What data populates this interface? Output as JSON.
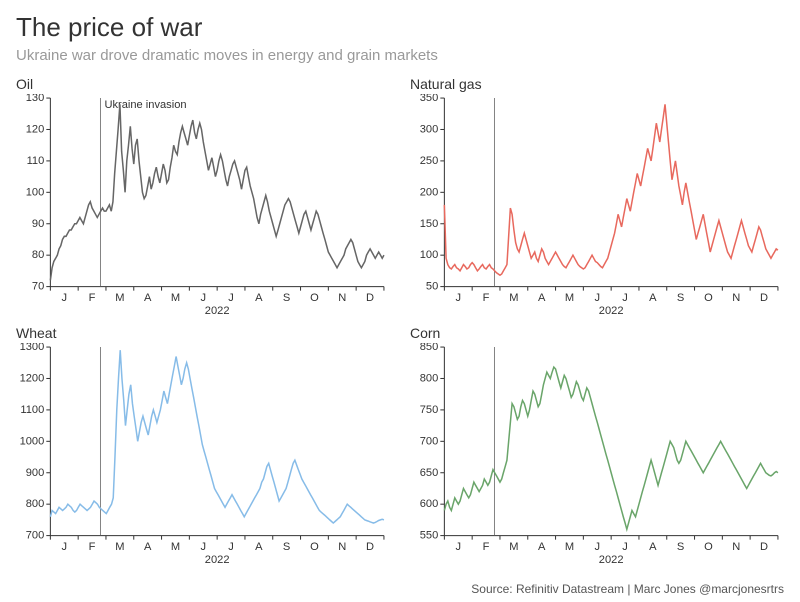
{
  "title": "The price of war",
  "subtitle": "Ukraine war drove dramatic moves in energy and grain markets",
  "source": "Source: Refinitiv Datastream | Marc Jones @marcjonesrtrs",
  "x_axis": {
    "ticks": [
      "J",
      "F",
      "M",
      "A",
      "M",
      "J",
      "J",
      "A",
      "S",
      "O",
      "N",
      "D"
    ],
    "label": "2022",
    "label_fontsize": 11,
    "tick_fontsize": 11
  },
  "invasion_marker": {
    "month_index": 1.8,
    "annotation": "Ukraine invasion",
    "show_annotation_on_panel": 0
  },
  "panels": [
    {
      "title": "Oil",
      "type": "line",
      "line_color": "#666666",
      "line_width": 1.5,
      "ylim": [
        70,
        130
      ],
      "ytick_step": 10,
      "tick_fontsize": 11,
      "background_color": "#ffffff",
      "values": [
        72,
        76,
        78,
        79,
        80,
        82,
        83,
        85,
        86,
        86,
        87,
        88,
        88,
        89,
        90,
        90,
        91,
        92,
        91,
        90,
        92,
        94,
        96,
        97,
        95,
        94,
        93,
        92,
        93,
        94,
        95,
        94,
        94,
        95,
        96,
        94,
        97,
        106,
        113,
        120,
        128,
        113,
        107,
        100,
        110,
        115,
        121,
        114,
        109,
        115,
        117,
        110,
        105,
        100,
        98,
        99,
        102,
        105,
        101,
        103,
        106,
        108,
        105,
        103,
        106,
        109,
        107,
        103,
        104,
        108,
        111,
        115,
        113,
        112,
        116,
        119,
        121,
        119,
        117,
        115,
        118,
        121,
        123,
        119,
        117,
        120,
        122,
        120,
        116,
        113,
        110,
        107,
        109,
        111,
        108,
        105,
        107,
        110,
        112,
        110,
        107,
        104,
        102,
        105,
        107,
        109,
        110,
        108,
        106,
        104,
        101,
        104,
        107,
        108,
        105,
        102,
        100,
        98,
        95,
        92,
        90,
        93,
        95,
        97,
        99,
        97,
        94,
        92,
        90,
        88,
        86,
        88,
        90,
        92,
        94,
        96,
        97,
        98,
        97,
        95,
        93,
        91,
        89,
        87,
        89,
        91,
        93,
        94,
        92,
        90,
        88,
        90,
        92,
        94,
        93,
        91,
        89,
        87,
        85,
        83,
        81,
        80,
        79,
        78,
        77,
        76,
        77,
        78,
        79,
        80,
        82,
        83,
        84,
        85,
        84,
        82,
        80,
        78,
        77,
        76,
        77,
        78,
        80,
        81,
        82,
        81,
        80,
        79,
        80,
        81,
        80,
        79,
        80
      ]
    },
    {
      "title": "Natural gas",
      "type": "line",
      "line_color": "#e8695e",
      "line_width": 1.5,
      "ylim": [
        50,
        350
      ],
      "ytick_step": 50,
      "tick_fontsize": 11,
      "background_color": "#ffffff",
      "values": [
        180,
        95,
        85,
        80,
        78,
        82,
        85,
        80,
        78,
        75,
        80,
        85,
        82,
        78,
        80,
        85,
        88,
        85,
        80,
        75,
        78,
        82,
        85,
        80,
        78,
        82,
        85,
        80,
        78,
        75,
        72,
        70,
        68,
        70,
        75,
        80,
        85,
        130,
        175,
        165,
        140,
        120,
        110,
        105,
        115,
        125,
        135,
        125,
        115,
        105,
        95,
        100,
        105,
        95,
        90,
        100,
        110,
        105,
        95,
        90,
        85,
        90,
        95,
        100,
        105,
        100,
        95,
        90,
        85,
        82,
        80,
        85,
        90,
        95,
        100,
        95,
        90,
        85,
        82,
        80,
        78,
        80,
        85,
        90,
        95,
        100,
        95,
        90,
        88,
        85,
        82,
        80,
        85,
        90,
        95,
        105,
        115,
        125,
        135,
        150,
        165,
        155,
        145,
        160,
        175,
        190,
        180,
        170,
        185,
        200,
        215,
        230,
        220,
        210,
        225,
        240,
        255,
        270,
        260,
        250,
        270,
        290,
        310,
        295,
        280,
        300,
        320,
        340,
        310,
        280,
        250,
        220,
        235,
        250,
        230,
        210,
        195,
        180,
        200,
        215,
        200,
        185,
        170,
        155,
        140,
        125,
        135,
        145,
        155,
        165,
        150,
        135,
        120,
        105,
        115,
        125,
        135,
        145,
        155,
        145,
        135,
        125,
        115,
        105,
        100,
        95,
        105,
        115,
        125,
        135,
        145,
        155,
        145,
        135,
        125,
        115,
        110,
        105,
        115,
        125,
        135,
        145,
        140,
        130,
        120,
        110,
        105,
        100,
        95,
        100,
        105,
        110,
        108
      ]
    },
    {
      "title": "Wheat",
      "type": "line",
      "line_color": "#87bce8",
      "line_width": 1.5,
      "ylim": [
        700,
        1300
      ],
      "ytick_step": 100,
      "tick_fontsize": 11,
      "background_color": "#ffffff",
      "values": [
        760,
        780,
        775,
        770,
        780,
        790,
        785,
        780,
        785,
        790,
        800,
        795,
        790,
        780,
        775,
        780,
        790,
        800,
        795,
        790,
        785,
        780,
        785,
        790,
        800,
        810,
        805,
        800,
        790,
        785,
        780,
        775,
        770,
        780,
        790,
        800,
        820,
        950,
        1100,
        1200,
        1290,
        1200,
        1130,
        1050,
        1100,
        1150,
        1180,
        1120,
        1080,
        1040,
        1000,
        1030,
        1060,
        1080,
        1060,
        1040,
        1020,
        1050,
        1080,
        1100,
        1080,
        1060,
        1080,
        1100,
        1130,
        1160,
        1140,
        1120,
        1150,
        1180,
        1210,
        1240,
        1270,
        1240,
        1210,
        1180,
        1200,
        1230,
        1250,
        1230,
        1200,
        1170,
        1140,
        1110,
        1080,
        1050,
        1020,
        990,
        970,
        950,
        930,
        910,
        890,
        870,
        850,
        840,
        830,
        820,
        810,
        800,
        790,
        800,
        810,
        820,
        830,
        820,
        810,
        800,
        790,
        780,
        770,
        760,
        770,
        780,
        790,
        800,
        810,
        820,
        830,
        840,
        850,
        870,
        880,
        900,
        920,
        930,
        910,
        890,
        870,
        850,
        830,
        810,
        820,
        830,
        840,
        850,
        870,
        890,
        910,
        930,
        940,
        925,
        910,
        895,
        880,
        870,
        860,
        850,
        840,
        830,
        820,
        810,
        800,
        790,
        780,
        775,
        770,
        765,
        760,
        755,
        750,
        745,
        740,
        745,
        750,
        755,
        760,
        770,
        780,
        790,
        800,
        795,
        790,
        785,
        780,
        775,
        770,
        765,
        760,
        755,
        750,
        748,
        746,
        744,
        742,
        740,
        742,
        745,
        748,
        750,
        752,
        750
      ]
    },
    {
      "title": "Corn",
      "type": "line",
      "line_color": "#6aa56a",
      "line_width": 1.5,
      "ylim": [
        550,
        850
      ],
      "ytick_step": 50,
      "tick_fontsize": 11,
      "background_color": "#ffffff",
      "values": [
        590,
        600,
        605,
        595,
        590,
        600,
        610,
        605,
        600,
        605,
        615,
        625,
        620,
        615,
        610,
        615,
        625,
        635,
        630,
        625,
        620,
        625,
        630,
        640,
        635,
        630,
        635,
        645,
        655,
        650,
        645,
        640,
        635,
        640,
        650,
        660,
        670,
        700,
        730,
        760,
        755,
        745,
        735,
        740,
        755,
        765,
        760,
        750,
        740,
        750,
        765,
        780,
        775,
        765,
        755,
        760,
        775,
        790,
        800,
        810,
        805,
        800,
        810,
        818,
        815,
        805,
        795,
        785,
        795,
        805,
        800,
        790,
        780,
        770,
        775,
        785,
        795,
        790,
        780,
        770,
        765,
        775,
        785,
        780,
        770,
        760,
        750,
        740,
        730,
        720,
        710,
        700,
        690,
        680,
        670,
        660,
        650,
        640,
        630,
        620,
        610,
        600,
        590,
        580,
        570,
        560,
        570,
        580,
        590,
        585,
        580,
        590,
        600,
        610,
        620,
        630,
        640,
        650,
        660,
        670,
        660,
        650,
        640,
        630,
        640,
        650,
        660,
        670,
        680,
        690,
        700,
        695,
        690,
        680,
        670,
        665,
        670,
        680,
        690,
        700,
        695,
        690,
        685,
        680,
        675,
        670,
        665,
        660,
        655,
        650,
        655,
        660,
        665,
        670,
        675,
        680,
        685,
        690,
        695,
        700,
        695,
        690,
        685,
        680,
        675,
        670,
        665,
        660,
        655,
        650,
        645,
        640,
        635,
        630,
        625,
        630,
        635,
        640,
        645,
        650,
        655,
        660,
        665,
        660,
        655,
        650,
        648,
        646,
        645,
        647,
        650,
        652,
        650
      ]
    }
  ]
}
